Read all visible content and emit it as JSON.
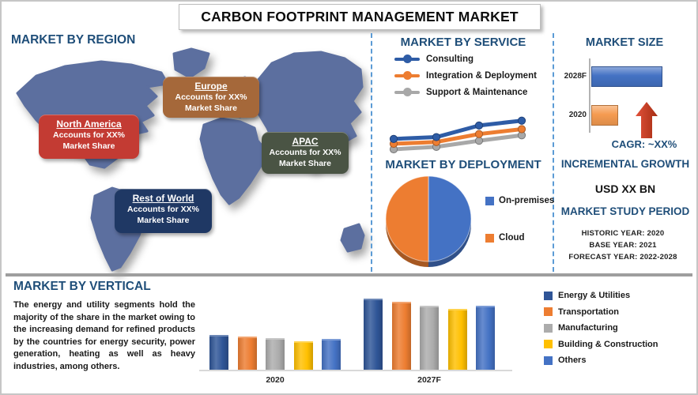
{
  "title": "CARBON FOOTPRINT MANAGEMENT MARKET",
  "theme": {
    "heading_color": "#1F4E79",
    "divider_dash_color": "#5B9BD5",
    "map_color": "#5C6F9F",
    "arrow_color": "#C8371E"
  },
  "region": {
    "heading": "MARKET BY REGION",
    "callouts": [
      {
        "name": "North America",
        "line1": "Accounts for XX%",
        "line2": "Market Share",
        "color": "#C33B33"
      },
      {
        "name": "Europe",
        "line1": "Accounts for XX%",
        "line2": "Market Share",
        "color": "#A5683A"
      },
      {
        "name": "APAC",
        "line1": "Accounts for XX%",
        "line2": "Market Share",
        "color": "#4A5444"
      },
      {
        "name": "Rest of World",
        "line1": "Accounts for XX%",
        "line2": "Market Share",
        "color": "#1F3864"
      }
    ]
  },
  "right_panel": {
    "incremental_heading": "INCREMENTAL GROWTH",
    "incremental_value": "USD XX BN",
    "study_heading": "MARKET STUDY PERIOD",
    "study_rows": [
      "HISTORIC YEAR: 2020",
      "BASE YEAR: 2021",
      "FORECAST YEAR: 2022-2028"
    ]
  },
  "vertical": {
    "paragraph": "The energy and utility segments hold the majority of the share in the market owing to the increasing demand for refined products by the countries for energy security, power generation, heating as well as heavy industries, among others."
  },
  "chart_data": [
    {
      "id": "service-trend",
      "type": "line",
      "title": "MARKET BY SERVICE",
      "x": [
        1,
        2,
        3,
        4
      ],
      "x_tick_labels": [],
      "ylim": [
        0,
        70
      ],
      "gridlines": false,
      "legend_position": "top-left",
      "note": "no axes or labels drawn; values are relative units estimated from pixel positions",
      "series": [
        {
          "name": "Consulting",
          "color": "#2E5CA6",
          "values": [
            30,
            33,
            52,
            60
          ]
        },
        {
          "name": "Integration & Deployment",
          "color": "#ED7D31",
          "values": [
            22,
            25,
            38,
            46
          ]
        },
        {
          "name": "Support & Maintenance",
          "color": "#A8A8A8",
          "values": [
            13,
            17,
            27,
            36
          ]
        }
      ]
    },
    {
      "id": "deployment-pie",
      "type": "pie",
      "title": "MARKET BY DEPLOYMENT",
      "legend_position": "right",
      "note": "approximately equal halves; share values are XX placeholders in source",
      "slices": [
        {
          "label": "On-premises",
          "value": 50,
          "color": "#4472C4"
        },
        {
          "label": "Cloud",
          "value": 50,
          "color": "#ED7D31"
        }
      ]
    },
    {
      "id": "market-size",
      "type": "bar",
      "orientation": "horizontal",
      "title": "MARKET SIZE",
      "categories": [
        "2028F",
        "2020"
      ],
      "values": [
        90,
        34
      ],
      "colors": [
        "#4472C4",
        "#F59B51"
      ],
      "annotation_cagr": "CAGR:  ~XX%",
      "note": "bar lengths estimated in relative units; actual figures are XX placeholders"
    },
    {
      "id": "vertical-bars",
      "type": "bar",
      "orientation": "vertical",
      "title": "MARKET BY VERTICAL",
      "categories": [
        "2020",
        "2027F"
      ],
      "legend_position": "right",
      "gridlines": false,
      "note": "grouped bars, values estimated in relative units from pixel heights",
      "series": [
        {
          "name": "Energy & Utilities",
          "color": "#2F5597",
          "values": [
            42,
            86
          ]
        },
        {
          "name": "Transportation",
          "color": "#ED7D31",
          "values": [
            40,
            82
          ]
        },
        {
          "name": "Manufacturing",
          "color": "#ACACAC",
          "values": [
            38,
            77
          ]
        },
        {
          "name": "Building & Construction",
          "color": "#FFC000",
          "values": [
            34,
            73
          ]
        },
        {
          "name": "Others",
          "color": "#4472C4",
          "values": [
            37,
            77
          ]
        }
      ]
    }
  ]
}
